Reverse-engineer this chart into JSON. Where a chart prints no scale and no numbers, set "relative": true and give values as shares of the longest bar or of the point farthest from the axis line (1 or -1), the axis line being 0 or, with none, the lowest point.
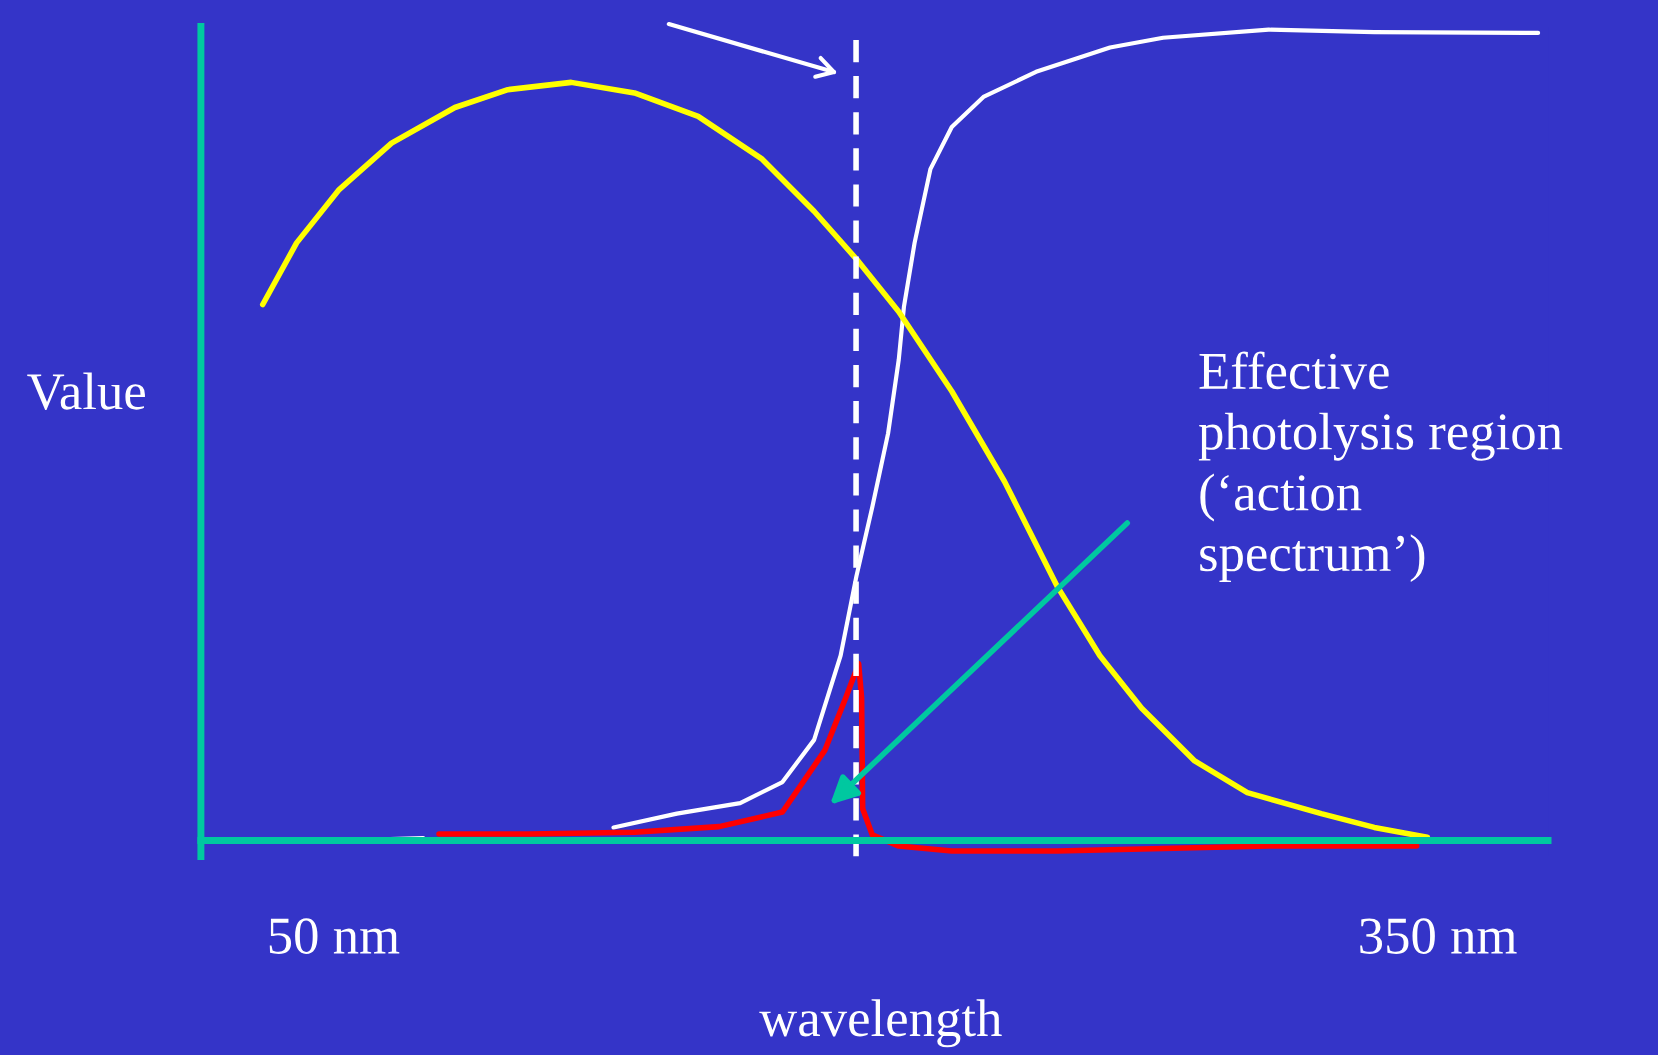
{
  "chart_data": {
    "type": "line",
    "relative": true,
    "xlabel": "wavelength",
    "ylabel": "Value",
    "xlim": [
      14,
      380
    ],
    "xticks": [
      {
        "value": 50,
        "label": "50 nm"
      },
      {
        "value": 350,
        "label": "350 nm"
      }
    ],
    "annotations": [
      "Effective\nphotolysis region\n(‘action\nspectrum’)"
    ],
    "ref_lines": [
      {
        "axis": "x",
        "value": 192,
        "color": "#ffffff",
        "line_style": "dashed"
      }
    ],
    "grid": false,
    "legend": false,
    "series": [
      {
        "color": "#ffffff",
        "x": [
          54.3,
          74.4,
          103.1,
          126.1,
          143.3,
          160.5,
          172.0,
          180.6,
          187.8,
          192.1,
          196.4,
          200.7,
          203.6,
          205.0,
          207.9,
          212.2,
          218.0,
          226.6,
          240.9,
          261.0,
          275.4,
          304.1,
          332.8,
          377.3
        ],
        "values": [
          0,
          0.003,
          null,
          0.016,
          0.033,
          0.046,
          0.072,
          0.124,
          0.228,
          0.326,
          0.411,
          0.502,
          0.593,
          0.658,
          0.737,
          0.828,
          0.88,
          0.917,
          0.948,
          0.978,
          0.99,
          1.0,
          0.997,
          0.996
        ]
      },
      {
        "color": "#ffff00",
        "x": [
          30.8,
          40.0,
          51.4,
          65.8,
          83.0,
          97.4,
          114.6,
          131.8,
          149.1,
          166.3,
          180.6,
          192.1,
          203.6,
          218.0,
          232.3,
          246.7,
          258.2,
          269.6,
          284.0,
          298.3,
          318.4,
          332.8,
          347.2
        ],
        "values": [
          0.661,
          0.737,
          0.802,
          0.86,
          0.904,
          0.926,
          0.935,
          0.922,
          0.893,
          0.841,
          0.776,
          0.717,
          0.652,
          0.554,
          0.443,
          0.313,
          0.228,
          0.163,
          0.098,
          0.059,
          0.033,
          0.016,
          0.004
        ]
      },
      {
        "color": "#ff0000",
        "x": [
          78.7,
          103.1,
          131.8,
          154.8,
          172.0,
          183.5,
          189.2,
          192.7,
          193.5,
          193.8,
          196.4,
          203.6,
          218.0,
          246.7,
          275.4,
          304.1,
          344.3
        ],
        "values": [
          0.008,
          0.008,
          0.01,
          0.017,
          0.035,
          0.111,
          0.176,
          0.218,
          0.176,
          0.039,
          0.007,
          -0.007,
          -0.013,
          -0.013,
          -0.01,
          -0.007,
          -0.007
        ]
      }
    ]
  }
}
